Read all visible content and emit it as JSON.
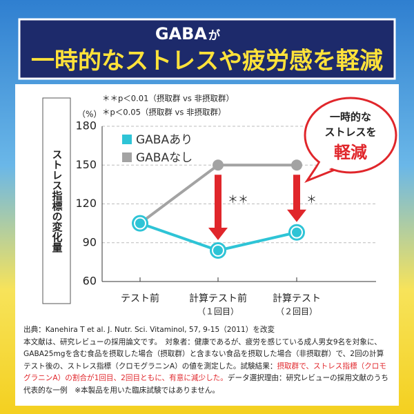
{
  "header": {
    "title_lead": "GABA",
    "title_particle": "が",
    "headline": "一時的なストレスや疲労感を軽減"
  },
  "callout": {
    "lines": [
      "一時的な",
      "ストレスを"
    ],
    "emphasis": "軽減"
  },
  "chart_data": {
    "type": "line",
    "notes": [
      "＊＊p＜0.01（摂取群 vs 非摂取群）",
      "＊p＜0.05（摂取群 vs 非摂取群）"
    ],
    "y_unit": "（%）",
    "y_label": "ストレス指標の変化量",
    "categories": [
      "テスト前",
      "計算テスト前",
      "計算テスト"
    ],
    "category_notes": [
      null,
      "（１回目）",
      "（２回目）"
    ],
    "series": [
      {
        "name": "GABAあり",
        "color": "#2ec4d6",
        "values": [
          105,
          84,
          98
        ]
      },
      {
        "name": "GABAなし",
        "color": "#a3a3a3",
        "values": [
          105,
          150,
          150
        ]
      }
    ],
    "significance": [
      null,
      "＊＊",
      "＊"
    ],
    "ylim": [
      60,
      180
    ],
    "yticks": [
      60,
      90,
      120,
      150,
      180
    ],
    "grid": true
  },
  "footer": {
    "source": "出典：Kanehira T et al. J. Nutr. Sci. Vitaminol, 57, 9-15（2011）を改変",
    "body": "本文献は、研究レビューの採用論文です。　対象者：健康であるが、疲労を感じている成人男女9名を対象に、GABA25mgを含む食品を摂取した場合（摂取群）と含まない食品を摂取した場合（非摂取群）で、2回の計算テスト後の、ストレス指標（クロモグラニンA）の値を測定した。試験結果：",
    "result": "摂取群で、ストレス指標（クロモグラニンA）の割合が1回目、2回目ともに、有意に減少した。",
    "tail": "データ選択理由：研究レビューの採用文献のうち代表的な一例　※本製品を用いた臨床試験ではありません。"
  }
}
